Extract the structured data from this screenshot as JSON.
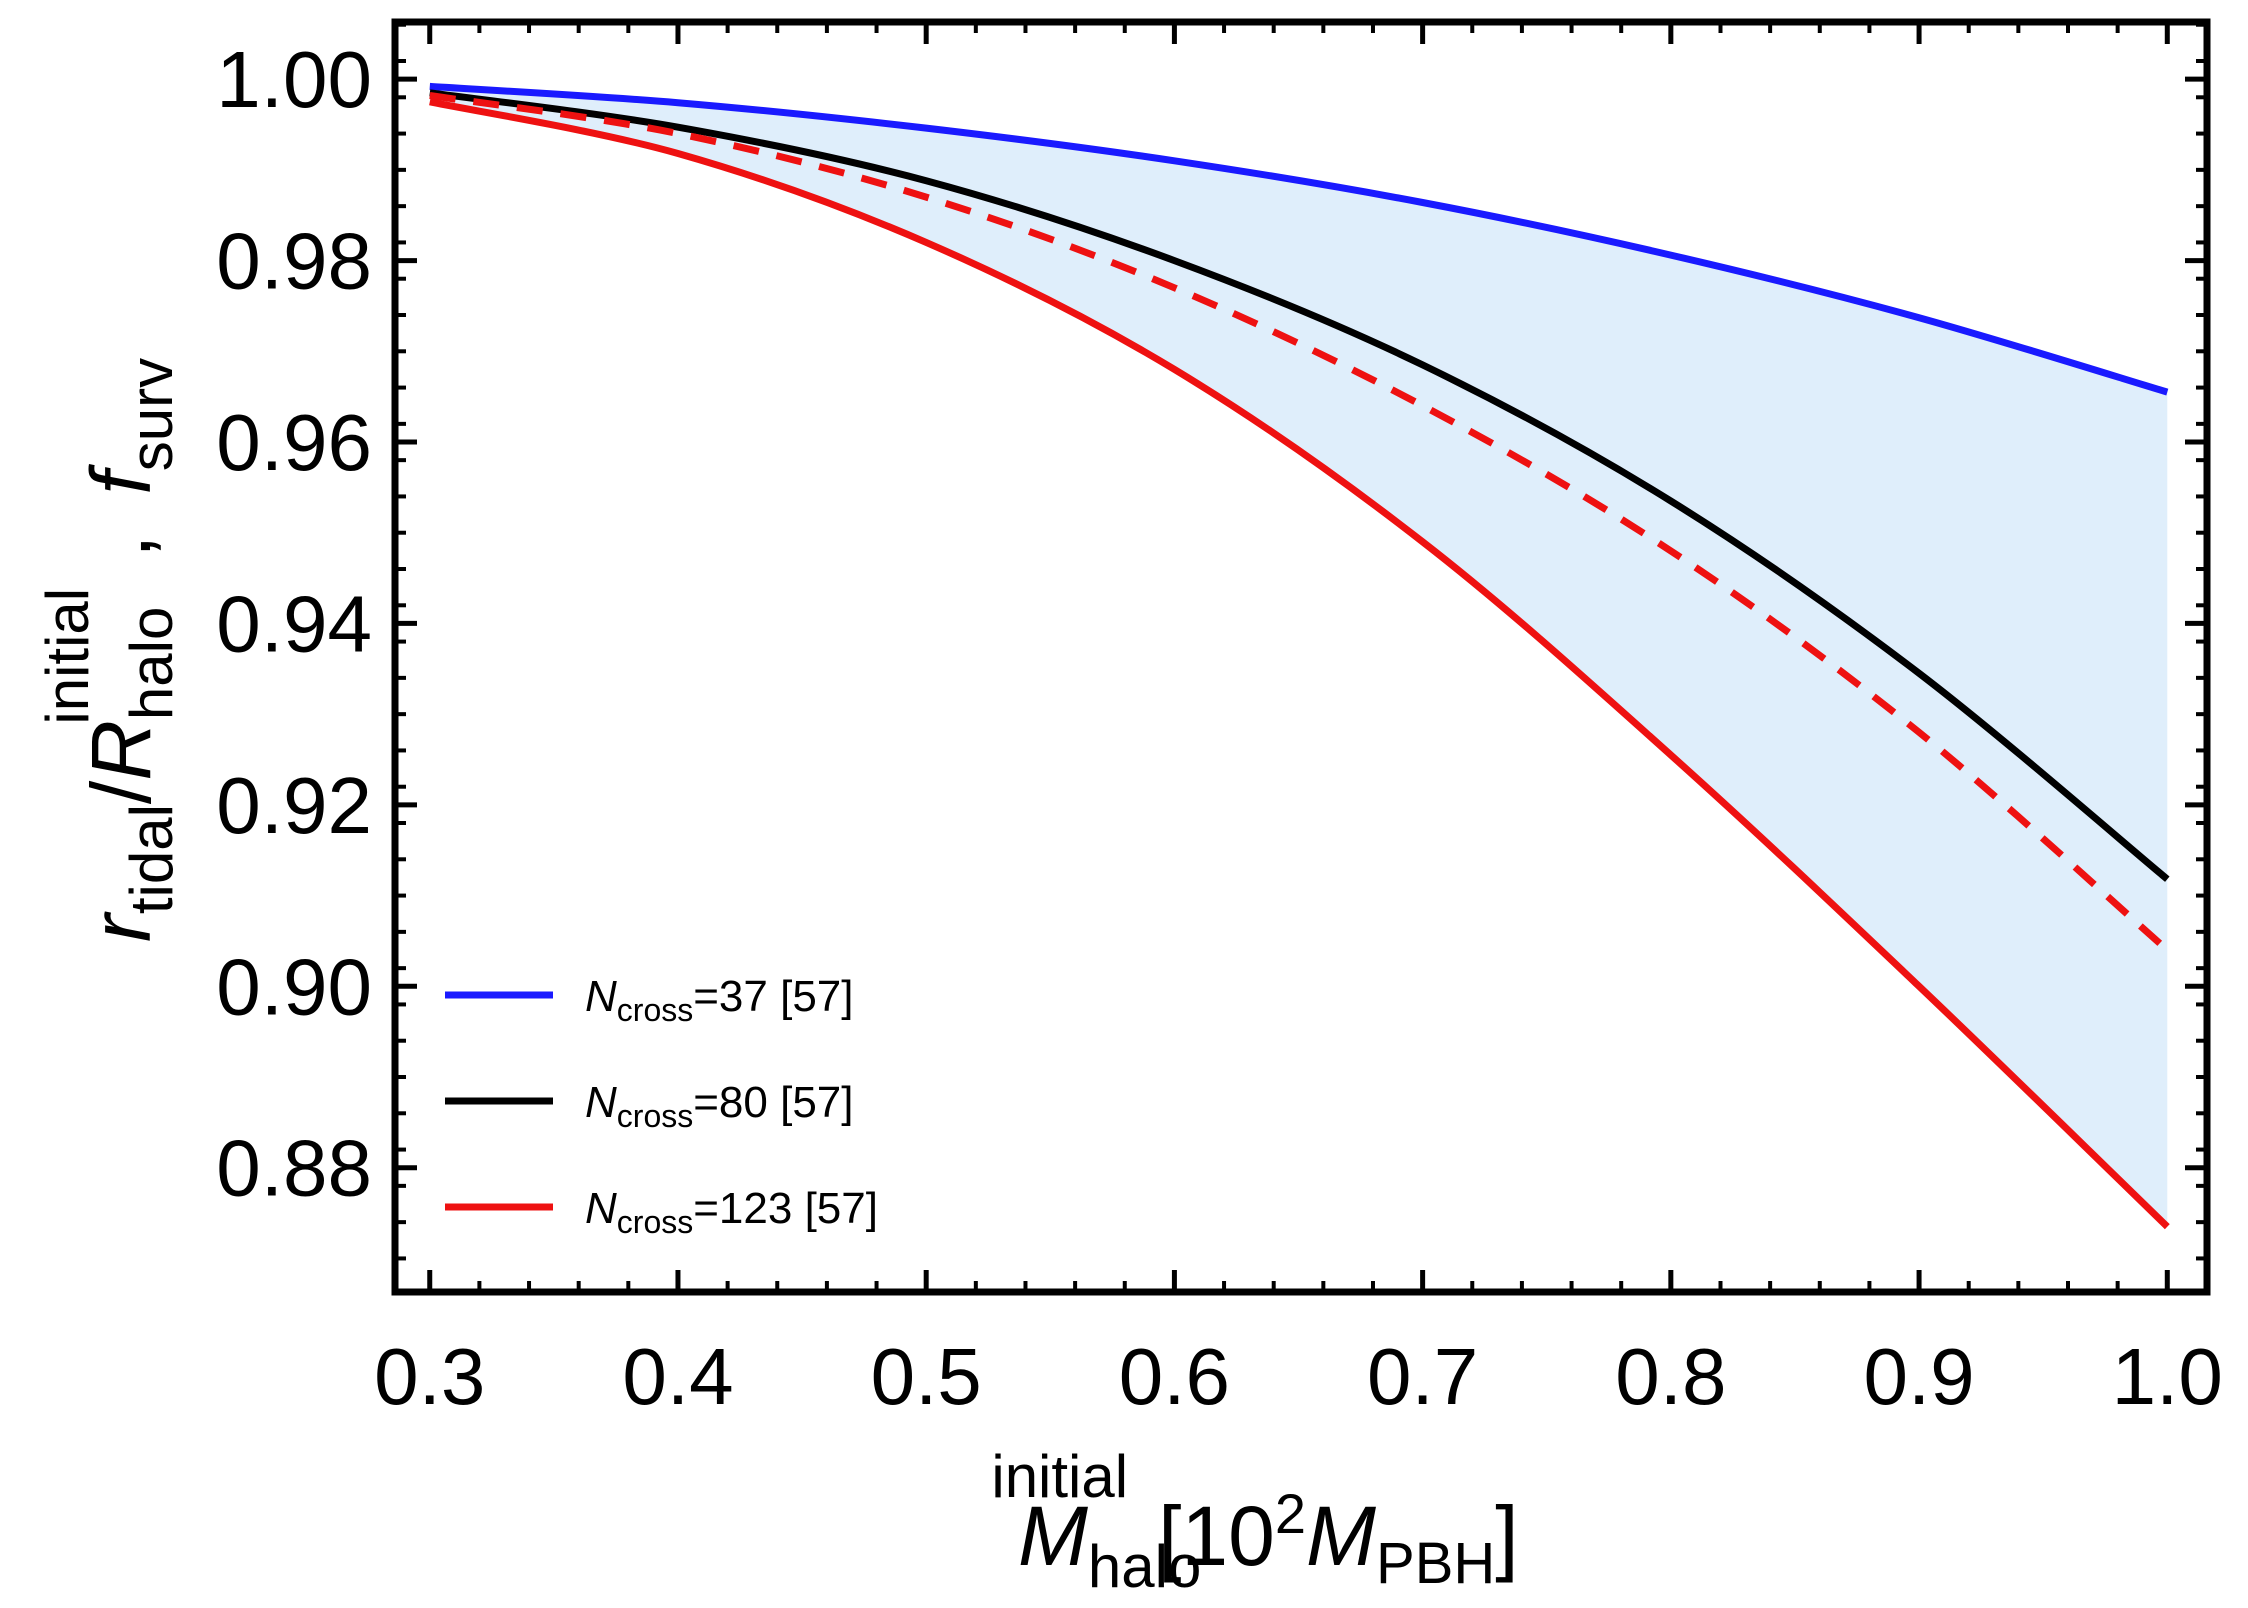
{
  "chart_data": {
    "type": "line",
    "xlim": [
      0.286,
      1.016
    ],
    "ylim": [
      0.8663,
      1.0063
    ],
    "x_ticks_major": [
      0.3,
      0.4,
      0.5,
      0.6,
      0.7,
      0.8,
      0.9,
      1.0
    ],
    "x_tick_labels": [
      "0.3",
      "0.4",
      "0.5",
      "0.6",
      "0.7",
      "0.8",
      "0.9",
      "1.0"
    ],
    "y_ticks_major": [
      0.88,
      0.9,
      0.92,
      0.94,
      0.96,
      0.98,
      1.0
    ],
    "y_tick_labels": [
      "0.88",
      "0.90",
      "0.92",
      "0.94",
      "0.96",
      "0.98",
      "1.00"
    ],
    "xlabel": {
      "main": "M",
      "sub": "halo",
      "sup": "initial",
      "bracket_open": "[10",
      "exponent": "2",
      "unit": "M",
      "unit_sub": "PBH",
      "bracket_close": "]"
    },
    "ylabel": {
      "r": "r",
      "r_sub": "tidal",
      "slash": "/",
      "R": "R",
      "R_sub": "halo",
      "R_sup": "initial",
      "comma": ",",
      "f": "f",
      "f_sub": "surv"
    },
    "series": [
      {
        "name": "N_cross=37 [57]",
        "color": "#1a1aff",
        "style": "solid",
        "x": [
          0.3,
          0.4,
          0.5,
          0.6,
          0.7,
          0.8,
          0.9,
          1.0
        ],
        "values": [
          0.9992,
          0.9974,
          0.9946,
          0.991,
          0.9864,
          0.9806,
          0.9737,
          0.9655
        ]
      },
      {
        "name": "N_cross=80 [57]",
        "color": "#000000",
        "style": "solid",
        "x": [
          0.3,
          0.4,
          0.5,
          0.6,
          0.7,
          0.8,
          0.9,
          1.0
        ],
        "values": [
          0.9985,
          0.9947,
          0.9888,
          0.98,
          0.9685,
          0.9535,
          0.9345,
          0.9118
        ]
      },
      {
        "name": "f_surv",
        "color": "#ee1111",
        "style": "dashed",
        "x": [
          0.3,
          0.4,
          0.5,
          0.6,
          0.7,
          0.8,
          0.9,
          1.0
        ],
        "values": [
          0.9982,
          0.994,
          0.987,
          0.977,
          0.964,
          0.948,
          0.928,
          0.904
        ]
      },
      {
        "name": "N_cross=123 [57]",
        "color": "#ee1111",
        "style": "solid",
        "x": [
          0.3,
          0.4,
          0.5,
          0.6,
          0.7,
          0.8,
          0.9,
          1.0
        ],
        "values": [
          0.9975,
          0.9918,
          0.982,
          0.968,
          0.949,
          0.9255,
          0.9,
          0.8735
        ]
      }
    ],
    "band": {
      "color": "#dfeefb",
      "upper_series": "N_cross=37 [57]",
      "lower_series": "N_cross=123 [57]"
    },
    "legend": {
      "placement": "bottom-left",
      "entries": [
        {
          "italic": "N",
          "sub": "cross",
          "rest": "=37 [57]",
          "color": "#1a1aff"
        },
        {
          "italic": "N",
          "sub": "cross",
          "rest": "=80 [57]",
          "color": "#000000"
        },
        {
          "italic": "N",
          "sub": "cross",
          "rest": "=123 [57]",
          "color": "#ee1111"
        }
      ]
    }
  }
}
